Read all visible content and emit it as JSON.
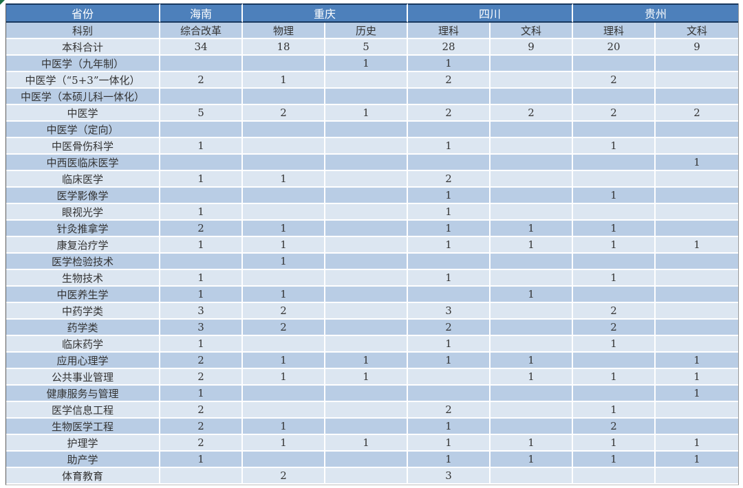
{
  "colors": {
    "header_bg": "#4d80bb",
    "header_border": "#17375d",
    "row_medium": "#b9cde5",
    "row_light": "#dce6f1",
    "green_marker": "#1e7145"
  },
  "table": {
    "province_header": {
      "label": "省份",
      "groups": [
        {
          "name": "海南",
          "span": 1
        },
        {
          "name": "重庆",
          "span": 2
        },
        {
          "name": "四川",
          "span": 2
        },
        {
          "name": "贵州",
          "span": 2
        }
      ]
    },
    "subject_header": {
      "label": "科别",
      "cols": [
        "综合改革",
        "物理",
        "历史",
        "理科",
        "文科",
        "理科",
        "文科"
      ]
    },
    "rows": [
      {
        "label": "本科合计",
        "values": [
          "34",
          "18",
          "5",
          "28",
          "9",
          "20",
          "9"
        ]
      },
      {
        "label": "中医学（九年制）",
        "values": [
          "",
          "",
          "1",
          "1",
          "",
          "",
          ""
        ]
      },
      {
        "label": "中医学（“5+3”一体化）",
        "values": [
          "2",
          "1",
          "",
          "2",
          "",
          "2",
          ""
        ]
      },
      {
        "label": "中医学（本硕儿科一体化）",
        "values": [
          "",
          "",
          "",
          "",
          "",
          "",
          ""
        ]
      },
      {
        "label": "中医学",
        "values": [
          "5",
          "2",
          "1",
          "2",
          "2",
          "2",
          "2"
        ]
      },
      {
        "label": "中医学（定向）",
        "values": [
          "",
          "",
          "",
          "",
          "",
          "",
          ""
        ]
      },
      {
        "label": "中医骨伤科学",
        "values": [
          "1",
          "",
          "",
          "1",
          "",
          "1",
          ""
        ]
      },
      {
        "label": "中西医临床医学",
        "values": [
          "",
          "",
          "",
          "",
          "",
          "",
          "1"
        ]
      },
      {
        "label": "临床医学",
        "values": [
          "1",
          "1",
          "",
          "2",
          "",
          "",
          ""
        ]
      },
      {
        "label": "医学影像学",
        "values": [
          "",
          "",
          "",
          "1",
          "",
          "1",
          ""
        ]
      },
      {
        "label": "眼视光学",
        "values": [
          "1",
          "",
          "",
          "1",
          "",
          "",
          ""
        ]
      },
      {
        "label": "针灸推拿学",
        "values": [
          "2",
          "1",
          "",
          "1",
          "1",
          "1",
          ""
        ]
      },
      {
        "label": "康复治疗学",
        "values": [
          "1",
          "1",
          "",
          "1",
          "1",
          "1",
          "1"
        ]
      },
      {
        "label": "医学检验技术",
        "values": [
          "",
          "1",
          "",
          "",
          "",
          "",
          ""
        ]
      },
      {
        "label": "生物技术",
        "values": [
          "1",
          "",
          "",
          "1",
          "",
          "1",
          ""
        ]
      },
      {
        "label": "中医养生学",
        "values": [
          "1",
          "1",
          "",
          "",
          "1",
          "",
          ""
        ]
      },
      {
        "label": "中药学类",
        "values": [
          "3",
          "2",
          "",
          "3",
          "",
          "2",
          ""
        ]
      },
      {
        "label": "药学类",
        "values": [
          "3",
          "2",
          "",
          "2",
          "",
          "2",
          ""
        ]
      },
      {
        "label": "临床药学",
        "values": [
          "1",
          "",
          "",
          "1",
          "",
          "1",
          ""
        ]
      },
      {
        "label": "应用心理学",
        "values": [
          "2",
          "1",
          "1",
          "1",
          "1",
          "",
          "1"
        ]
      },
      {
        "label": "公共事业管理",
        "values": [
          "2",
          "1",
          "1",
          "",
          "1",
          "1",
          "1"
        ]
      },
      {
        "label": "健康服务与管理",
        "values": [
          "1",
          "",
          "",
          "",
          "",
          "",
          "1"
        ]
      },
      {
        "label": "医学信息工程",
        "values": [
          "2",
          "",
          "",
          "2",
          "",
          "1",
          ""
        ]
      },
      {
        "label": "生物医学工程",
        "values": [
          "2",
          "1",
          "",
          "1",
          "",
          "2",
          ""
        ]
      },
      {
        "label": "护理学",
        "values": [
          "2",
          "1",
          "1",
          "1",
          "1",
          "1",
          "1"
        ]
      },
      {
        "label": "助产学",
        "values": [
          "1",
          "",
          "",
          "1",
          "1",
          "1",
          "1"
        ]
      },
      {
        "label": "体育教育",
        "values": [
          "",
          "2",
          "",
          "3",
          "",
          "",
          ""
        ]
      }
    ]
  }
}
